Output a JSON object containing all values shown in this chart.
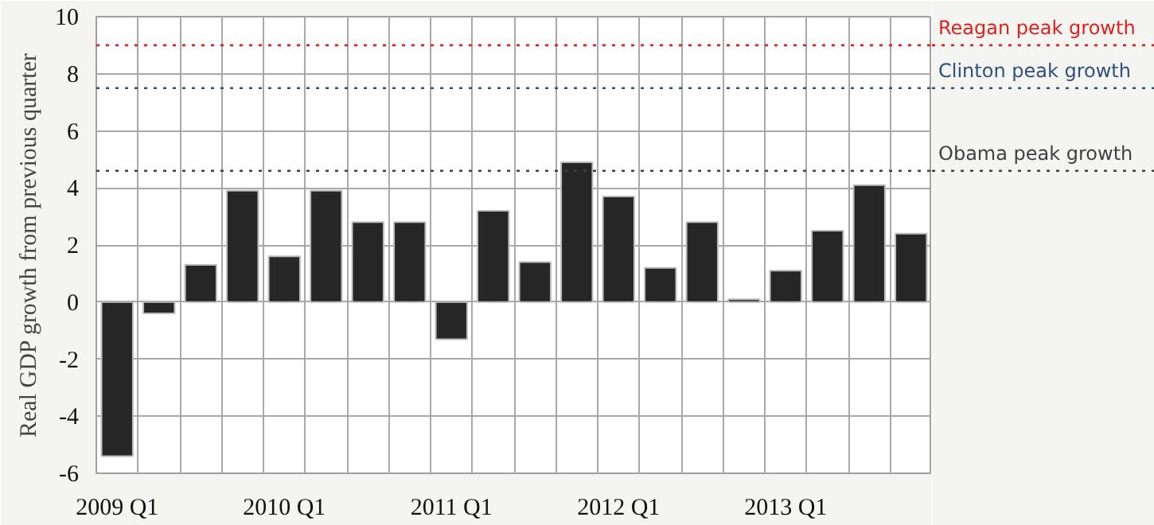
{
  "chart_data": {
    "type": "bar",
    "ylabel": "Real GDP growth from previous quarter",
    "categories": [
      "2009 Q1",
      null,
      null,
      null,
      "2010 Q1",
      null,
      null,
      null,
      "2011 Q1",
      null,
      null,
      null,
      "2012 Q1",
      null,
      null,
      null,
      "2013 Q1",
      null,
      null,
      null
    ],
    "values": [
      -5.4,
      -0.4,
      1.3,
      3.9,
      1.6,
      3.9,
      2.8,
      2.8,
      -1.3,
      3.2,
      1.4,
      4.9,
      3.7,
      1.2,
      2.8,
      0.1,
      1.1,
      2.5,
      4.1,
      2.4
    ],
    "color": "#262626",
    "ylim": [
      -6,
      10
    ],
    "yticks": [
      -6,
      -4,
      -2,
      0,
      2,
      4,
      6,
      8,
      10
    ],
    "grid": true,
    "ref_lines": [
      {
        "axis": "y",
        "value": 9.0,
        "label": "Reagan peak growth",
        "color": "#e02020",
        "line_style": "dotted"
      },
      {
        "axis": "y",
        "value": 7.5,
        "label": "Clinton peak growth",
        "color": "#2f4f7f",
        "line_style": "dotted"
      },
      {
        "axis": "y",
        "value": 4.6,
        "label": "Obama peak growth",
        "color": "#404040",
        "line_style": "dotted"
      }
    ]
  }
}
